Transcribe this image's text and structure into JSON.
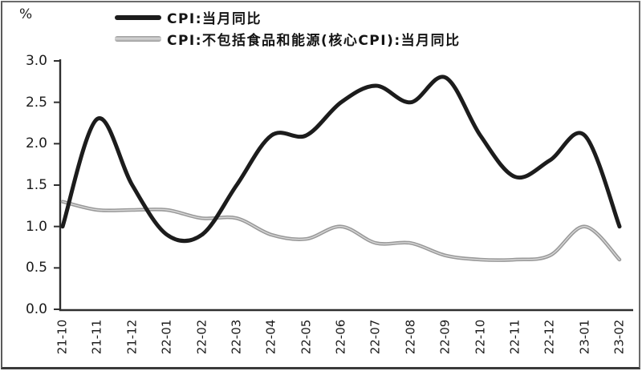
{
  "chart_data": {
    "type": "line",
    "title": "",
    "xlabel": "",
    "ylabel": "%",
    "ylim": [
      0.0,
      3.0
    ],
    "grid": false,
    "legend_position": "top-left",
    "yticks": [
      "3.0",
      "2.5",
      "2.0",
      "1.5",
      "1.0",
      "0.5",
      "0.0"
    ],
    "categories": [
      "21-10",
      "21-11",
      "21-12",
      "22-01",
      "22-02",
      "22-03",
      "22-04",
      "22-05",
      "22-06",
      "22-07",
      "22-08",
      "22-09",
      "22-10",
      "22-11",
      "22-12",
      "23-01",
      "23-02"
    ],
    "series": [
      {
        "name": "CPI:当月同比",
        "color": "#1c1c1c",
        "stroke_width": 5,
        "values": [
          1.0,
          2.3,
          1.5,
          0.9,
          0.9,
          1.5,
          2.1,
          2.1,
          2.5,
          2.7,
          2.5,
          2.8,
          2.1,
          1.6,
          1.8,
          2.1,
          1.0
        ]
      },
      {
        "name": "CPI:不包括食品和能源(核心CPI):当月同比",
        "color": "#999999",
        "highlight_color": "#d8d8d8",
        "stroke_width": 4.5,
        "values": [
          1.3,
          1.2,
          1.2,
          1.2,
          1.1,
          1.1,
          0.9,
          0.85,
          1.0,
          0.8,
          0.8,
          0.65,
          0.6,
          0.6,
          0.65,
          1.0,
          0.6
        ]
      }
    ],
    "axis_color": "#2e2e2e"
  }
}
